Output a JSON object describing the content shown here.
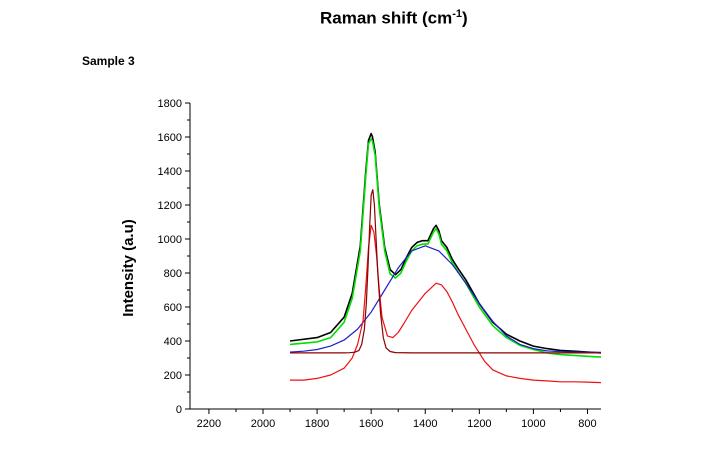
{
  "figure": {
    "title_main": "Raman shift (cm",
    "title_sup": "-1",
    "title_end": ")",
    "sample_label": "Sample 3"
  },
  "colors": {
    "black": "#000000",
    "green": "#00e000",
    "blue": "#1f1fcc",
    "red": "#ee1111",
    "darkred": "#8b0000"
  },
  "chart_data": {
    "type": "line",
    "xlabel": "",
    "ylabel": "Intensity (a.u)",
    "xlim": [
      2270,
      750
    ],
    "ylim": [
      0,
      1800
    ],
    "x_reversed": true,
    "xticks": [
      2200,
      2000,
      1800,
      1600,
      1400,
      1200,
      1000,
      800
    ],
    "yticks": [
      0,
      200,
      400,
      600,
      800,
      1000,
      1200,
      1400,
      1600,
      1800
    ],
    "grid": false,
    "series": [
      {
        "color": "black",
        "x": [
          1900,
          1800,
          1750,
          1700,
          1670,
          1640,
          1620,
          1610,
          1600,
          1595,
          1585,
          1570,
          1550,
          1530,
          1510,
          1490,
          1470,
          1450,
          1430,
          1410,
          1390,
          1370,
          1360,
          1350,
          1340,
          1320,
          1300,
          1280,
          1250,
          1200,
          1150,
          1100,
          1050,
          1000,
          950,
          900,
          850,
          800,
          750
        ],
        "y": [
          400,
          420,
          450,
          540,
          680,
          960,
          1400,
          1580,
          1620,
          1600,
          1510,
          1200,
          950,
          820,
          790,
          820,
          890,
          950,
          980,
          990,
          990,
          1060,
          1080,
          1050,
          990,
          950,
          880,
          830,
          760,
          620,
          510,
          440,
          400,
          370,
          355,
          345,
          340,
          335,
          330
        ]
      },
      {
        "color": "green",
        "x": [
          1900,
          1800,
          1750,
          1700,
          1670,
          1640,
          1620,
          1610,
          1600,
          1595,
          1585,
          1570,
          1550,
          1530,
          1510,
          1490,
          1470,
          1450,
          1430,
          1410,
          1390,
          1370,
          1360,
          1350,
          1340,
          1320,
          1300,
          1280,
          1250,
          1200,
          1150,
          1100,
          1050,
          1000,
          950,
          900,
          850,
          800,
          750
        ],
        "y": [
          380,
          395,
          420,
          510,
          650,
          930,
          1370,
          1560,
          1590,
          1575,
          1490,
          1180,
          930,
          795,
          770,
          800,
          870,
          930,
          960,
          970,
          970,
          1040,
          1060,
          1030,
          970,
          930,
          860,
          810,
          740,
          600,
          490,
          420,
          375,
          350,
          330,
          320,
          315,
          310,
          305
        ]
      },
      {
        "color": "blue",
        "x": [
          1900,
          1850,
          1800,
          1750,
          1700,
          1650,
          1600,
          1550,
          1500,
          1450,
          1400,
          1350,
          1300,
          1250,
          1200,
          1150,
          1100,
          1050,
          1000,
          950,
          900,
          850,
          800,
          750
        ],
        "y": [
          335,
          340,
          350,
          370,
          405,
          470,
          570,
          700,
          830,
          930,
          960,
          930,
          850,
          740,
          620,
          515,
          430,
          380,
          355,
          342,
          337,
          335,
          334,
          333
        ]
      },
      {
        "color": "red",
        "x": [
          1900,
          1850,
          1800,
          1750,
          1700,
          1670,
          1650,
          1630,
          1620,
          1610,
          1600,
          1590,
          1580,
          1570,
          1560,
          1540,
          1520,
          1500,
          1480,
          1450,
          1420,
          1400,
          1380,
          1360,
          1340,
          1320,
          1300,
          1280,
          1250,
          1220,
          1200,
          1180,
          1150,
          1100,
          1050,
          1000,
          950,
          900,
          850,
          800,
          750
        ],
        "y": [
          170,
          170,
          180,
          200,
          240,
          300,
          380,
          520,
          720,
          950,
          1080,
          1040,
          900,
          700,
          540,
          430,
          420,
          450,
          500,
          580,
          640,
          680,
          710,
          740,
          730,
          690,
          630,
          560,
          470,
          380,
          330,
          280,
          230,
          195,
          180,
          170,
          165,
          160,
          160,
          158,
          155
        ]
      },
      {
        "color": "darkred",
        "x": [
          1900,
          1700,
          1680,
          1660,
          1645,
          1635,
          1625,
          1618,
          1612,
          1606,
          1600,
          1594,
          1588,
          1582,
          1575,
          1565,
          1555,
          1545,
          1530,
          1510,
          1450,
          1300,
          1100,
          900,
          750
        ],
        "y": [
          330,
          330,
          331,
          334,
          345,
          380,
          470,
          620,
          820,
          1050,
          1260,
          1290,
          1200,
          1010,
          790,
          560,
          420,
          360,
          338,
          332,
          330,
          330,
          330,
          330,
          330
        ]
      }
    ]
  }
}
